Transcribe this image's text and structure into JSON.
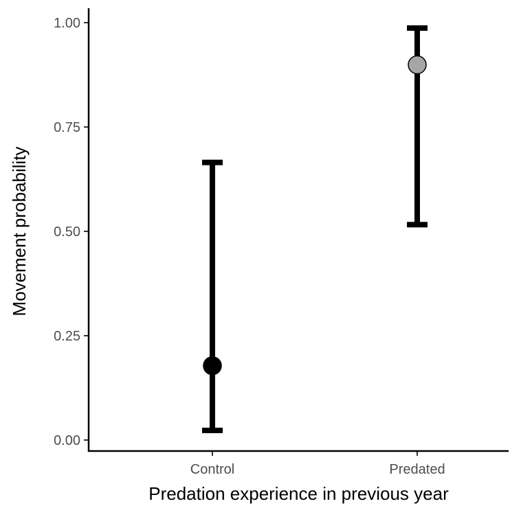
{
  "chart_data": {
    "type": "scatter",
    "title": "",
    "xlabel": "Predation experience in previous year",
    "ylabel": "Movement probability",
    "categories": [
      "Control",
      "Predated"
    ],
    "ylim": [
      0,
      1
    ],
    "y_ticks": [
      "0.00",
      "0.25",
      "0.50",
      "0.75",
      "1.00"
    ],
    "grid": false,
    "legend": "none",
    "points": [
      {
        "category": "Control",
        "estimate": 0.178,
        "lower": 0.023,
        "upper": 0.665,
        "fill": "#000000"
      },
      {
        "category": "Predated",
        "estimate": 0.899,
        "lower": 0.516,
        "upper": 0.987,
        "fill": "#a6a6a6"
      }
    ]
  }
}
